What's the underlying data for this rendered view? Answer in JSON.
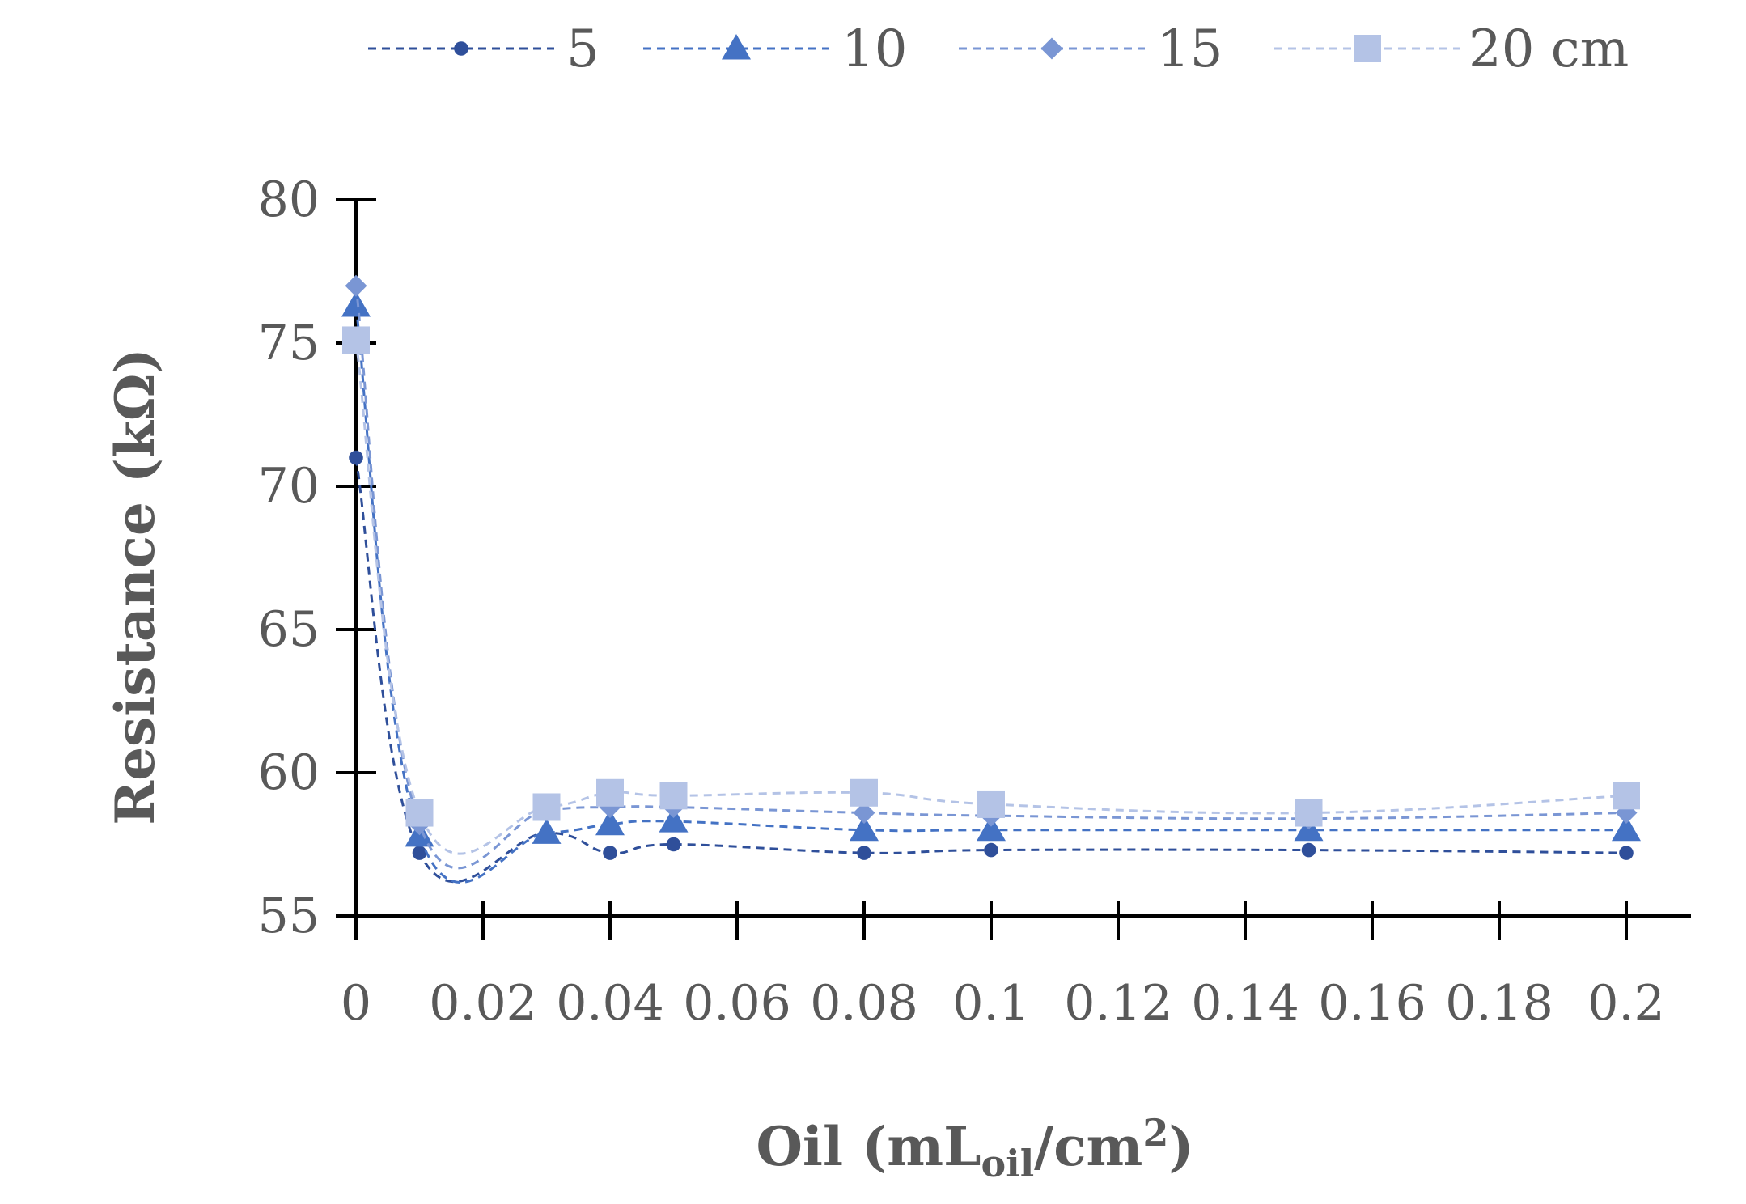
{
  "chart_data": {
    "type": "line",
    "title": "",
    "xlabel_main": "Oil (mL",
    "xlabel_sub": "oil",
    "xlabel_mid": "/cm",
    "xlabel_sup": "2",
    "xlabel_end": ")",
    "ylabel": "Resistance (kΩ)",
    "xlim": [
      0,
      0.2
    ],
    "ylim": [
      55,
      80
    ],
    "x_ticks": [
      0,
      0.02,
      0.04,
      0.06,
      0.08,
      0.1,
      0.12,
      0.14,
      0.16,
      0.18,
      0.2
    ],
    "x_tick_labels": [
      "0",
      "0.02",
      "0.04",
      "0.06",
      "0.08",
      "0.1",
      "0.12",
      "0.14",
      "0.16",
      "0.18",
      "0.2"
    ],
    "y_ticks": [
      55,
      60,
      65,
      70,
      75,
      80
    ],
    "y_tick_labels": [
      "55",
      "60",
      "65",
      "70",
      "75",
      "80"
    ],
    "legend_position": "top",
    "x": [
      0,
      0.01,
      0.03,
      0.04,
      0.05,
      0.08,
      0.1,
      0.15,
      0.2
    ],
    "series": [
      {
        "name": "5",
        "marker": "circle",
        "color": "#2F4F9A",
        "values": [
          71.0,
          57.2,
          57.9,
          57.2,
          57.5,
          57.2,
          57.3,
          57.3,
          57.2
        ]
      },
      {
        "name": "10",
        "marker": "triangle",
        "color": "#4472C4",
        "values": [
          76.3,
          57.8,
          57.9,
          58.2,
          58.3,
          58.0,
          58.0,
          58.0,
          58.0
        ]
      },
      {
        "name": "15",
        "marker": "diamond",
        "color": "#7A96D4",
        "values": [
          77.0,
          58.2,
          58.7,
          58.8,
          58.8,
          58.6,
          58.5,
          58.4,
          58.6
        ]
      },
      {
        "name": "20 cm",
        "marker": "square",
        "color": "#B4C3E6",
        "values": [
          75.1,
          58.6,
          58.8,
          59.3,
          59.2,
          59.3,
          58.9,
          58.6,
          59.2
        ]
      }
    ]
  }
}
